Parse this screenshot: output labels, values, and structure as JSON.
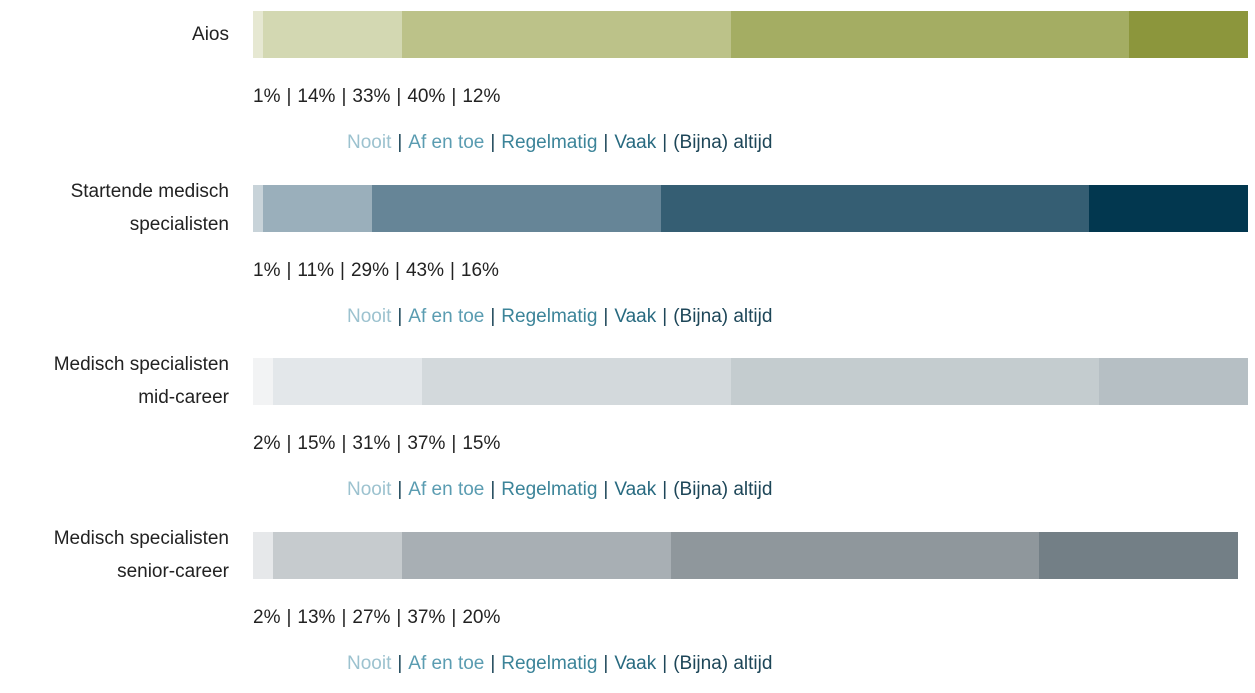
{
  "chart_data": {
    "type": "bar",
    "orientation": "horizontal",
    "stacked": true,
    "xlim": [
      0,
      100
    ],
    "separator": "|",
    "categories": [
      "Aios",
      "Startende medisch\nspecialisten",
      "Medisch specialisten\nmid-career",
      "Medisch specialisten\nsenior-career"
    ],
    "series": [
      {
        "name": "Nooit",
        "legend_color": "#9cc2cf",
        "colors": [
          "#e6e8d2",
          "#c8d3d9",
          "#f2f3f4",
          "#e6e8ea"
        ],
        "values": [
          1,
          1,
          2,
          2
        ],
        "value_labels": [
          "1%",
          "1%",
          "2%",
          "2%"
        ]
      },
      {
        "name": "Af en toe",
        "legend_color": "#5a9cb1",
        "colors": [
          "#d3d8b2",
          "#9aafbb",
          "#e3e7ea",
          "#c6cbce"
        ],
        "values": [
          14,
          11,
          15,
          13
        ],
        "value_labels": [
          "14%",
          "11%",
          "15%",
          "13%"
        ]
      },
      {
        "name": "Regelmatig",
        "legend_color": "#3c8499",
        "colors": [
          "#bcc289",
          "#668597",
          "#d3d9dc",
          "#a8afb4"
        ],
        "values": [
          33,
          29,
          31,
          27
        ],
        "value_labels": [
          "33%",
          "29%",
          "31%",
          "27%"
        ]
      },
      {
        "name": "Vaak",
        "legend_color": "#286a80",
        "colors": [
          "#a4ad63",
          "#355e73",
          "#c4cccf",
          "#8f979c"
        ],
        "values": [
          40,
          43,
          37,
          37
        ],
        "value_labels": [
          "40%",
          "43%",
          "37%",
          "37%"
        ]
      },
      {
        "name": "(Bijna) altijd",
        "legend_color": "#1d4658",
        "colors": [
          "#8c963c",
          "#02374f",
          "#b6bfc4",
          "#737f86"
        ],
        "values": [
          12,
          16,
          15,
          20
        ],
        "value_labels": [
          "12%",
          "16%",
          "15%",
          "20%"
        ]
      }
    ]
  }
}
